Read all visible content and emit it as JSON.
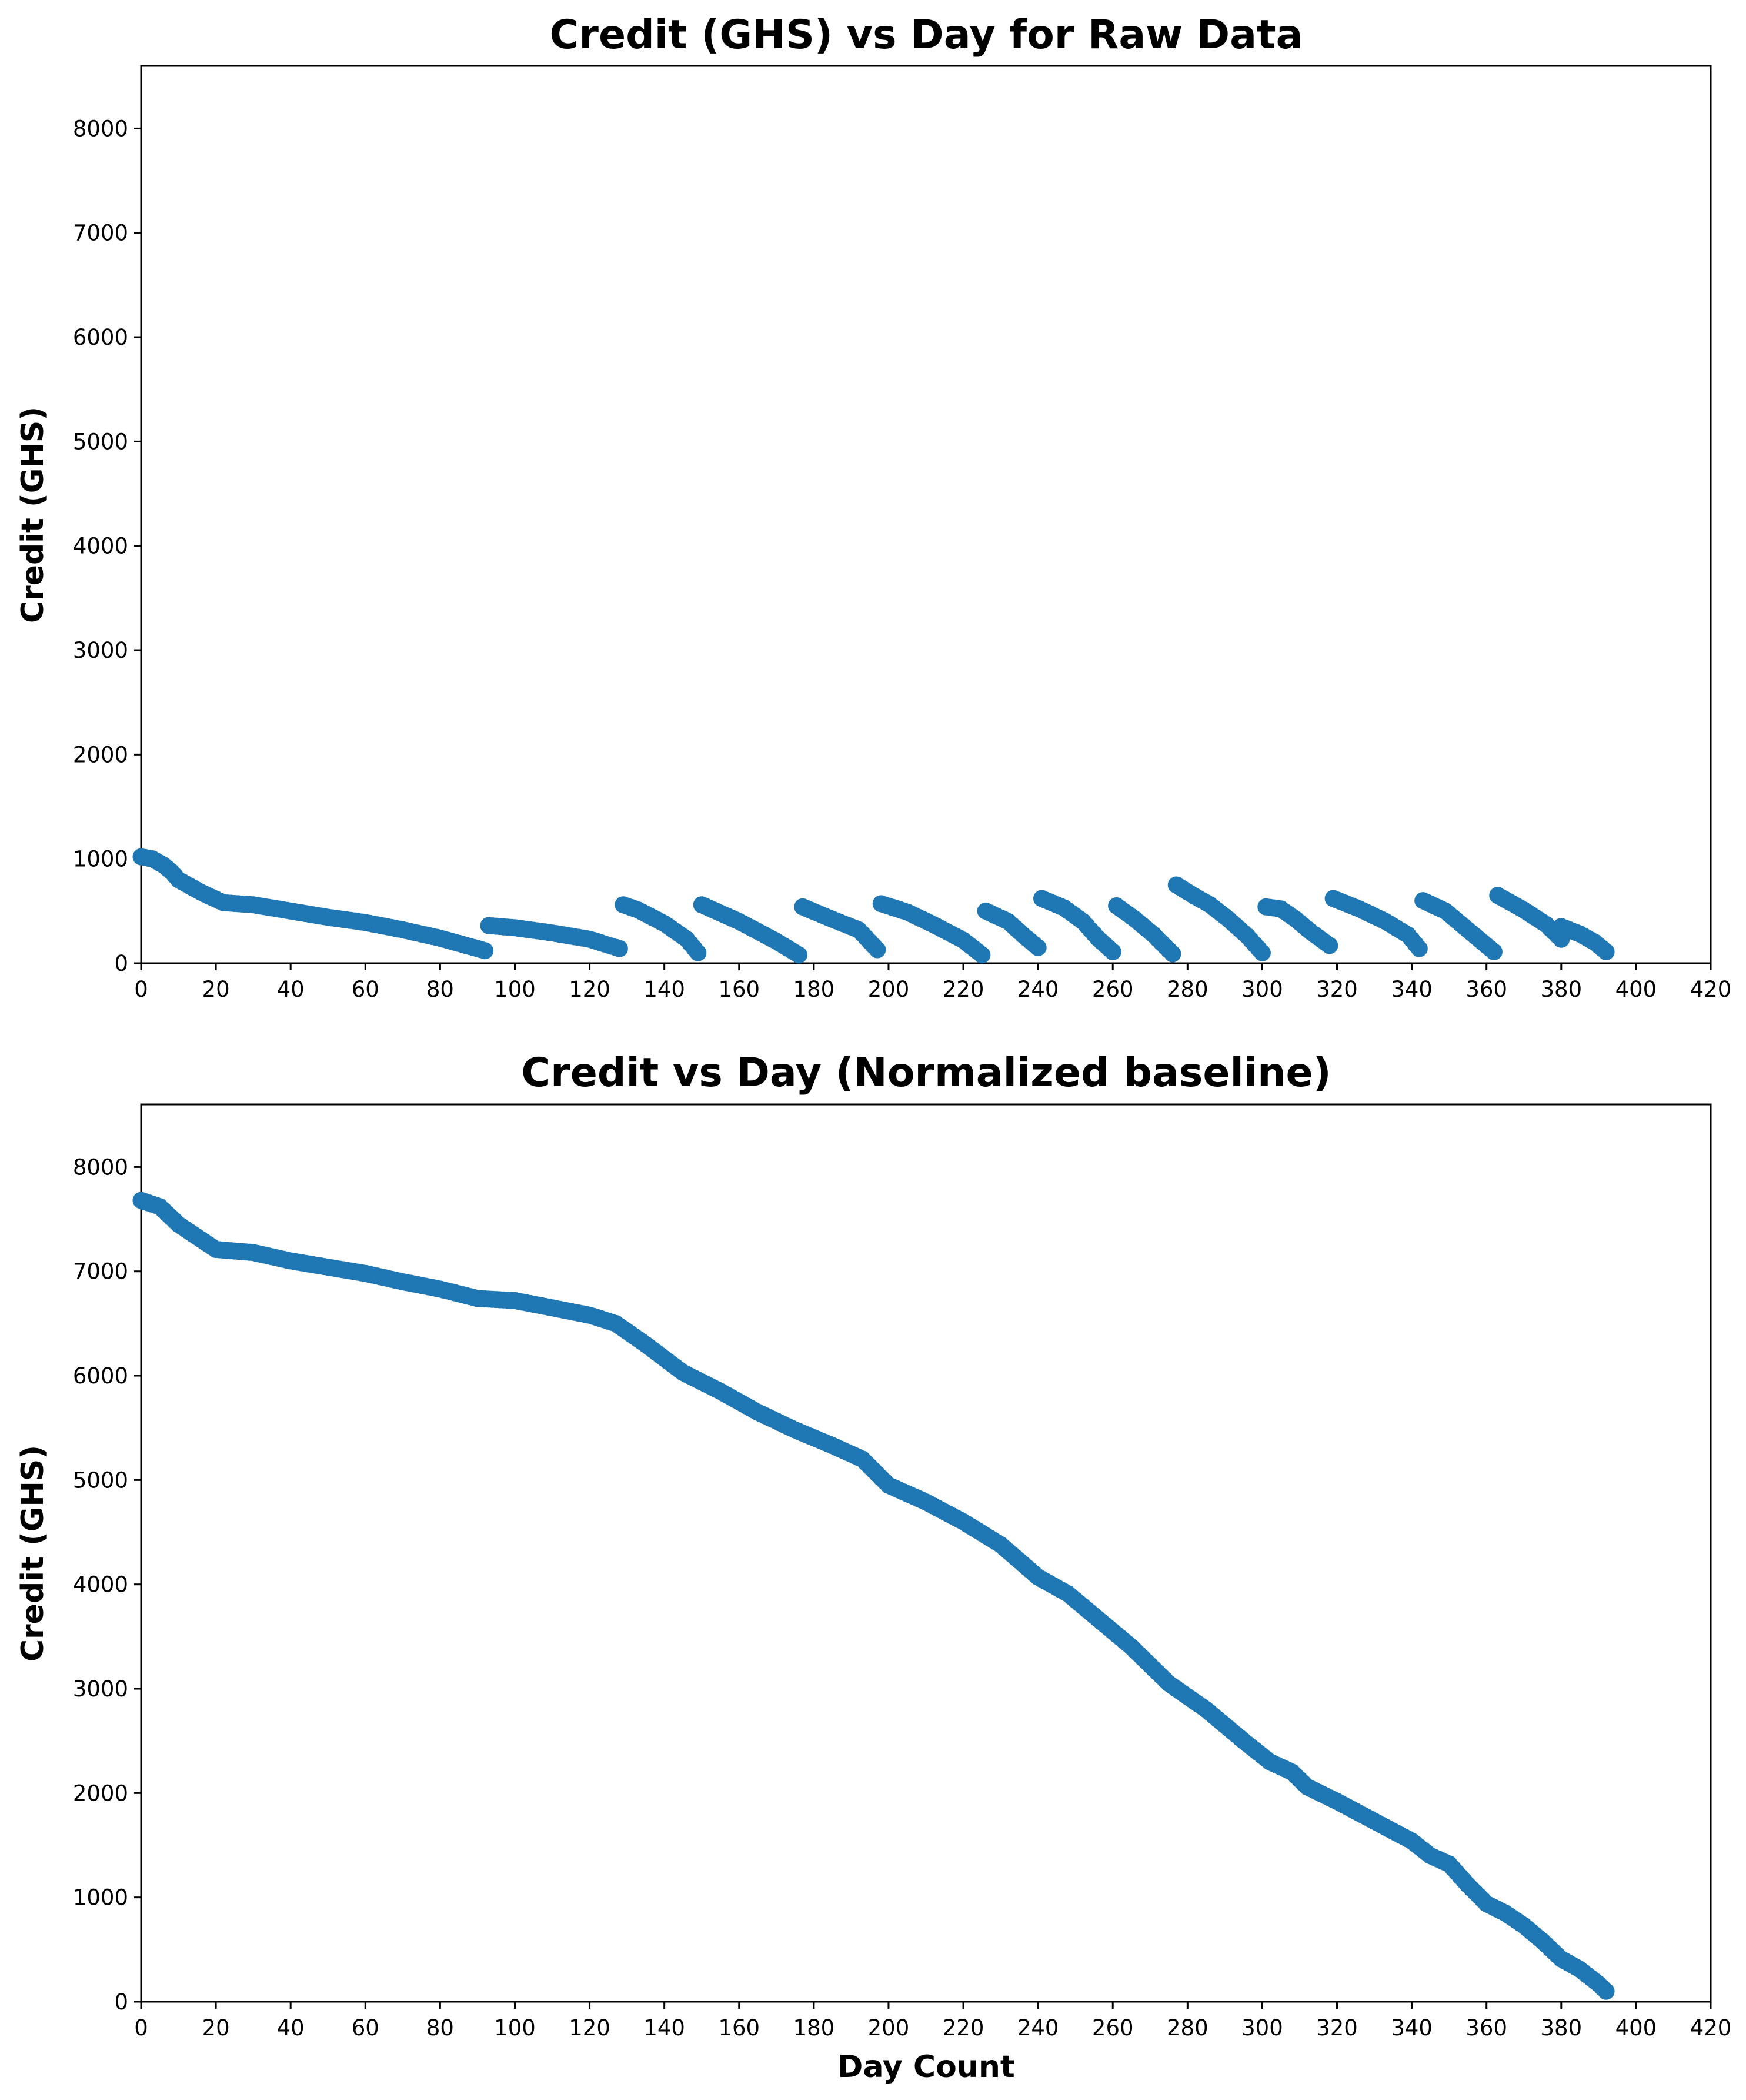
{
  "chart_data": [
    {
      "type": "scatter",
      "title": "Credit (GHS) vs Day for Raw Data",
      "xlabel": "",
      "ylabel": "Credit (GHS)",
      "xlim": [
        0,
        420
      ],
      "ylim": [
        0,
        8600
      ],
      "xticks": [
        0,
        20,
        40,
        60,
        80,
        100,
        120,
        140,
        160,
        180,
        200,
        220,
        240,
        260,
        280,
        300,
        320,
        340,
        360,
        380,
        400,
        420
      ],
      "yticks": [
        0,
        1000,
        2000,
        3000,
        4000,
        5000,
        6000,
        7000,
        8000
      ],
      "grid": false,
      "color": "#1f77b4",
      "series": [
        {
          "values": [
            [
              0,
              1020
            ],
            [
              3,
              1000
            ],
            [
              6,
              940
            ],
            [
              8,
              880
            ],
            [
              10,
              800
            ],
            [
              13,
              740
            ],
            [
              16,
              680
            ],
            [
              19,
              630
            ],
            [
              22,
              580
            ],
            [
              30,
              560
            ],
            [
              40,
              500
            ],
            [
              50,
              440
            ],
            [
              60,
              390
            ],
            [
              70,
              320
            ],
            [
              80,
              240
            ],
            [
              92,
              120
            ]
          ]
        },
        {
          "values": [
            [
              93,
              360
            ],
            [
              100,
              340
            ],
            [
              110,
              290
            ],
            [
              120,
              230
            ],
            [
              128,
              140
            ]
          ]
        },
        {
          "values": [
            [
              129,
              560
            ],
            [
              133,
              510
            ],
            [
              140,
              380
            ],
            [
              146,
              230
            ],
            [
              149,
              100
            ]
          ]
        },
        {
          "values": [
            [
              150,
              560
            ],
            [
              160,
              400
            ],
            [
              170,
              210
            ],
            [
              176,
              80
            ]
          ]
        },
        {
          "values": [
            [
              177,
              540
            ],
            [
              185,
              420
            ],
            [
              192,
              320
            ],
            [
              197,
              130
            ]
          ]
        },
        {
          "values": [
            [
              198,
              570
            ],
            [
              205,
              490
            ],
            [
              212,
              370
            ],
            [
              220,
              220
            ],
            [
              225,
              80
            ]
          ]
        },
        {
          "values": [
            [
              226,
              500
            ],
            [
              232,
              400
            ],
            [
              236,
              270
            ],
            [
              240,
              150
            ]
          ]
        },
        {
          "values": [
            [
              241,
              620
            ],
            [
              247,
              530
            ],
            [
              252,
              400
            ],
            [
              256,
              240
            ],
            [
              260,
              110
            ]
          ]
        },
        {
          "values": [
            [
              261,
              550
            ],
            [
              266,
              420
            ],
            [
              271,
              270
            ],
            [
              276,
              90
            ]
          ]
        },
        {
          "values": [
            [
              277,
              750
            ],
            [
              282,
              640
            ],
            [
              286,
              560
            ],
            [
              291,
              420
            ],
            [
              296,
              260
            ],
            [
              300,
              100
            ]
          ]
        },
        {
          "values": [
            [
              301,
              540
            ],
            [
              305,
              520
            ],
            [
              309,
              420
            ],
            [
              313,
              300
            ],
            [
              318,
              170
            ]
          ]
        },
        {
          "values": [
            [
              319,
              620
            ],
            [
              326,
              520
            ],
            [
              333,
              400
            ],
            [
              339,
              270
            ],
            [
              342,
              140
            ]
          ]
        },
        {
          "values": [
            [
              343,
              600
            ],
            [
              349,
              500
            ],
            [
              354,
              350
            ],
            [
              358,
              230
            ],
            [
              362,
              110
            ]
          ]
        },
        {
          "values": [
            [
              363,
              650
            ],
            [
              370,
              510
            ],
            [
              376,
              370
            ],
            [
              380,
              230
            ]
          ]
        },
        {
          "values": [
            [
              380,
              350
            ],
            [
              385,
              280
            ],
            [
              389,
              200
            ],
            [
              392,
              110
            ]
          ]
        }
      ]
    },
    {
      "type": "scatter",
      "title": "Credit vs Day (Normalized baseline)",
      "xlabel": "Day Count",
      "ylabel": "Credit (GHS)",
      "xlim": [
        0,
        420
      ],
      "ylim": [
        0,
        8600
      ],
      "xticks": [
        0,
        20,
        40,
        60,
        80,
        100,
        120,
        140,
        160,
        180,
        200,
        220,
        240,
        260,
        280,
        300,
        320,
        340,
        360,
        380,
        400,
        420
      ],
      "yticks": [
        0,
        1000,
        2000,
        3000,
        4000,
        5000,
        6000,
        7000,
        8000
      ],
      "grid": false,
      "color": "#1f77b4",
      "series": [
        {
          "values": [
            [
              0,
              7680
            ],
            [
              5,
              7620
            ],
            [
              10,
              7450
            ],
            [
              15,
              7330
            ],
            [
              20,
              7210
            ],
            [
              30,
              7180
            ],
            [
              40,
              7100
            ],
            [
              50,
              7040
            ],
            [
              60,
              6980
            ],
            [
              70,
              6900
            ],
            [
              80,
              6830
            ],
            [
              90,
              6740
            ],
            [
              100,
              6720
            ],
            [
              110,
              6650
            ],
            [
              120,
              6580
            ],
            [
              127,
              6500
            ],
            [
              135,
              6300
            ],
            [
              145,
              6030
            ],
            [
              155,
              5850
            ],
            [
              165,
              5650
            ],
            [
              175,
              5480
            ],
            [
              185,
              5330
            ],
            [
              193,
              5200
            ],
            [
              200,
              4950
            ],
            [
              210,
              4790
            ],
            [
              220,
              4600
            ],
            [
              230,
              4380
            ],
            [
              240,
              4070
            ],
            [
              248,
              3910
            ],
            [
              255,
              3700
            ],
            [
              265,
              3400
            ],
            [
              275,
              3050
            ],
            [
              285,
              2800
            ],
            [
              295,
              2500
            ],
            [
              302,
              2300
            ],
            [
              308,
              2200
            ],
            [
              312,
              2060
            ],
            [
              320,
              1920
            ],
            [
              330,
              1730
            ],
            [
              340,
              1540
            ],
            [
              345,
              1400
            ],
            [
              350,
              1320
            ],
            [
              355,
              1120
            ],
            [
              360,
              940
            ],
            [
              365,
              850
            ],
            [
              370,
              730
            ],
            [
              375,
              580
            ],
            [
              380,
              410
            ],
            [
              385,
              310
            ],
            [
              390,
              170
            ],
            [
              392,
              100
            ]
          ]
        }
      ]
    }
  ]
}
